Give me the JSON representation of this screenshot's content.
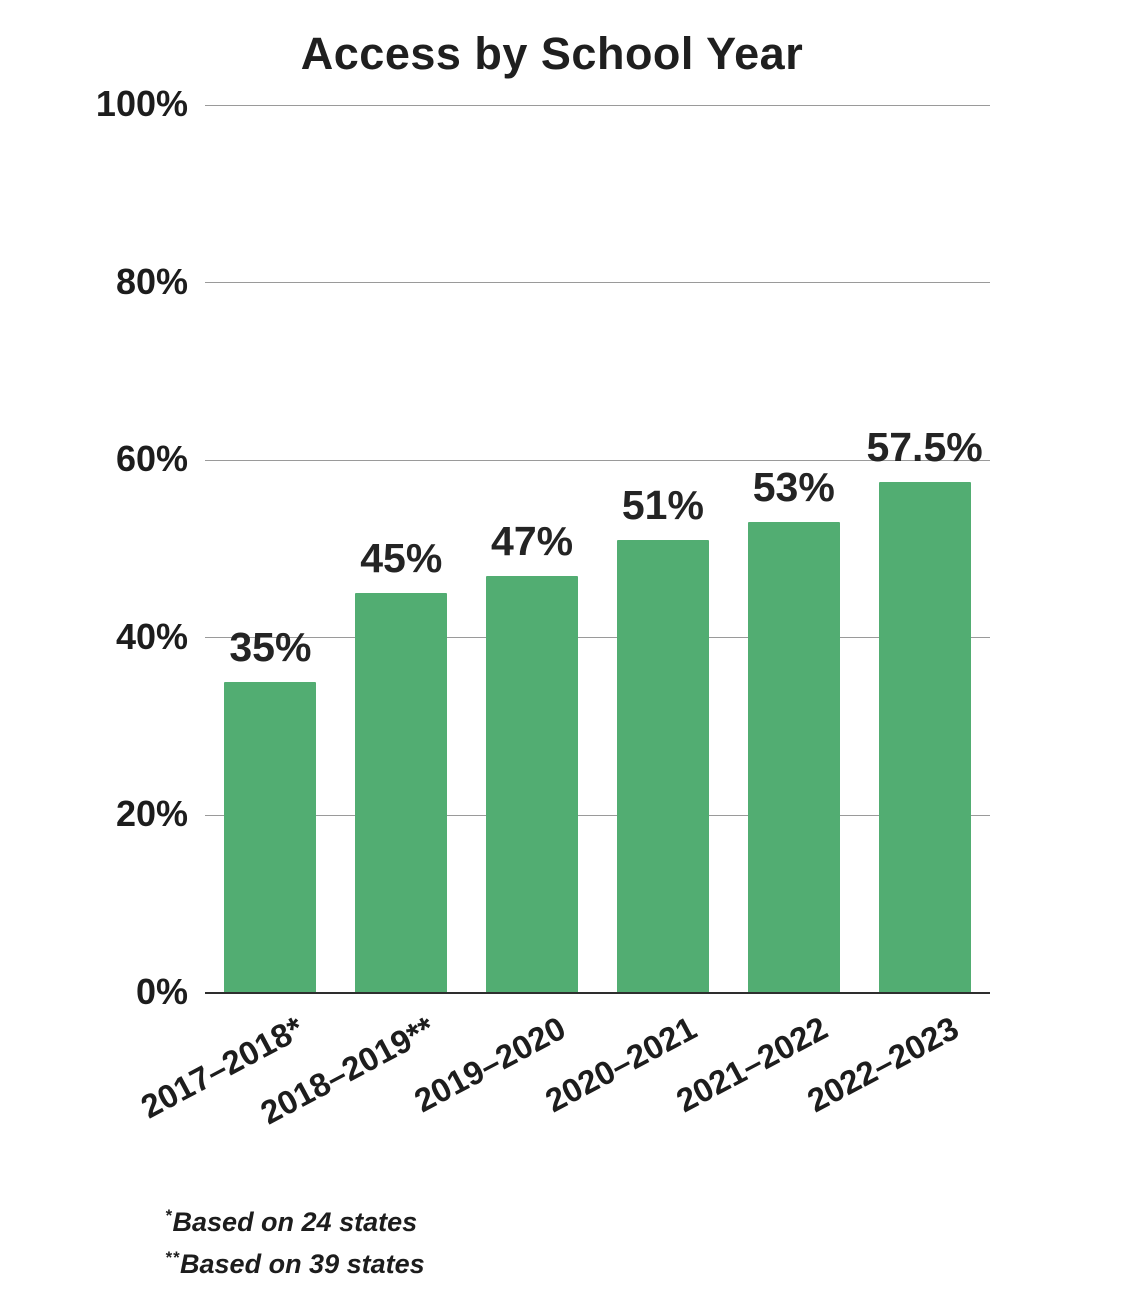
{
  "title": "Access by School Year",
  "chart_data": {
    "type": "bar",
    "title": "Access by School Year",
    "categories": [
      "2017–2018*",
      "2018–2019**",
      "2019–2020",
      "2020–2021",
      "2021–2022",
      "2022–2023"
    ],
    "values": [
      35,
      45,
      47,
      51,
      53,
      57.5
    ],
    "value_labels": [
      "35%",
      "45%",
      "47%",
      "51%",
      "53%",
      "57.5%"
    ],
    "xlabel": "",
    "ylabel": "",
    "ylim": [
      0,
      100
    ],
    "yticks": [
      0,
      20,
      40,
      60,
      80,
      100
    ],
    "ytick_labels": [
      "0%",
      "20%",
      "40%",
      "60%",
      "80%",
      "100%"
    ],
    "grid": true,
    "legend": false,
    "bar_color": "#52ad72"
  },
  "footnotes": [
    {
      "marker": "*",
      "text": "Based on 24 states"
    },
    {
      "marker": "**",
      "text": "Based on 39 states"
    }
  ],
  "colors": {
    "bar": "#52ad72",
    "gridline": "#9a9a9a",
    "baseline": "#2e2e2e",
    "text": "#1d1d1d"
  }
}
